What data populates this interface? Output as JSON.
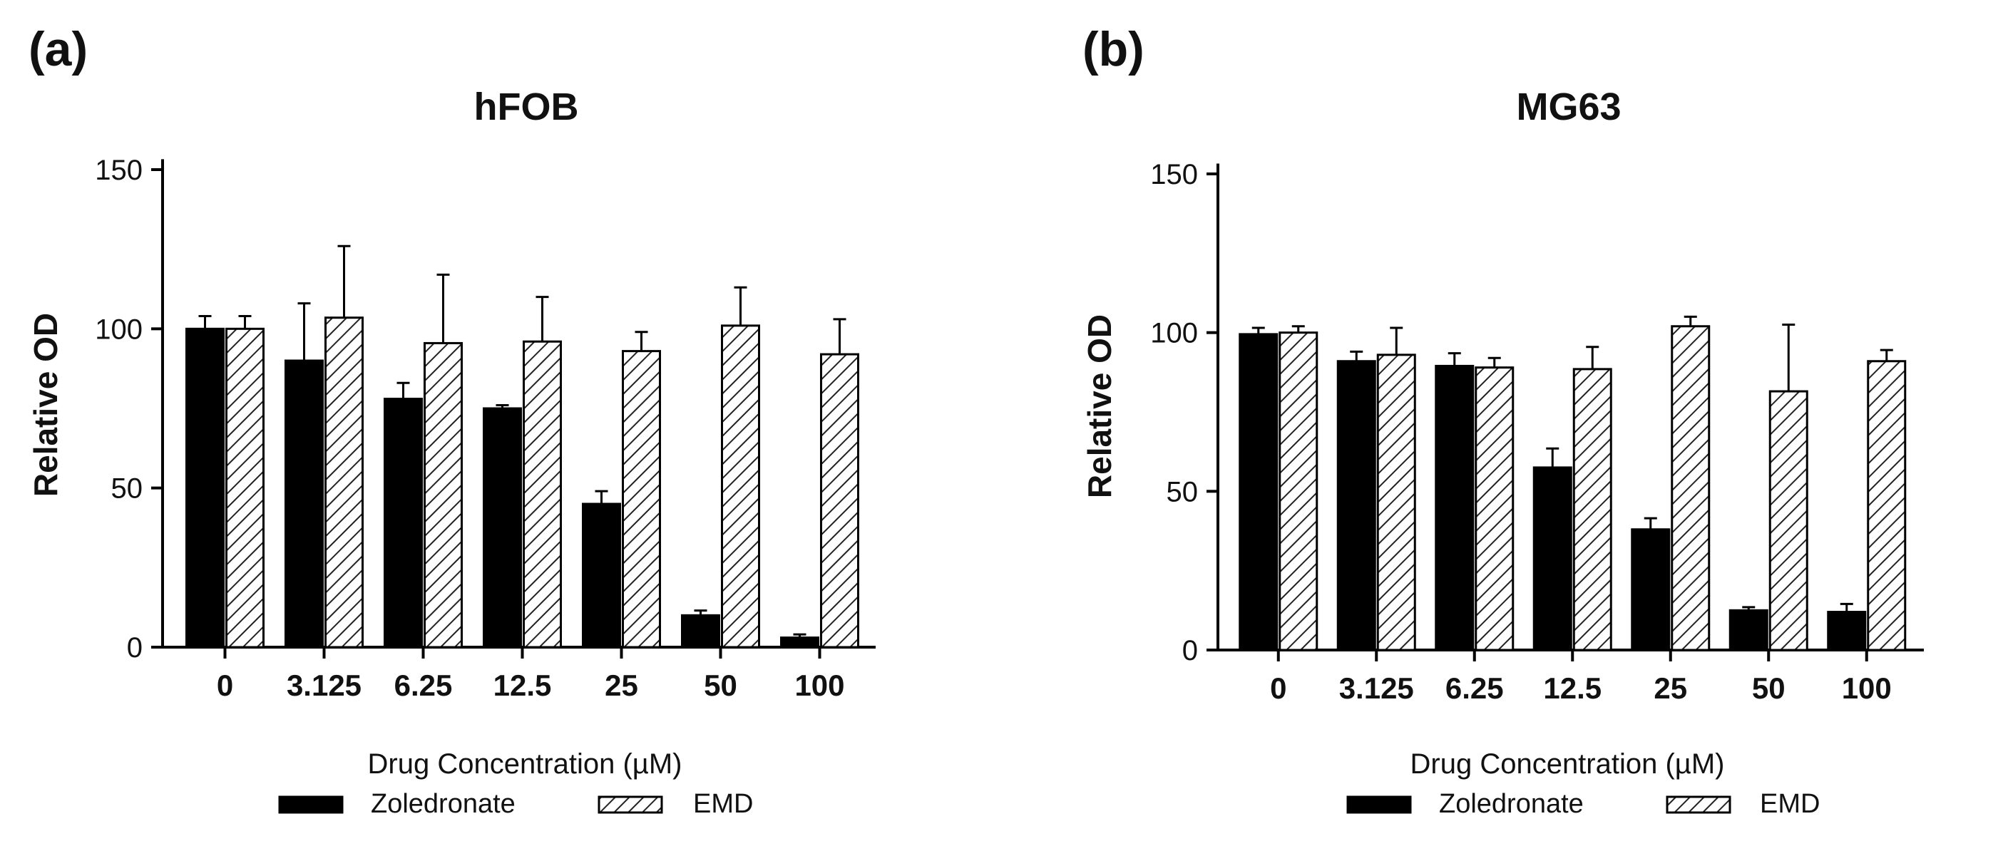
{
  "chart_data": [
    {
      "type": "bar",
      "panel_label": "(a)",
      "title": "hFOB",
      "xlabel": "Drug Concentration (µM)",
      "ylabel": "Relative  OD",
      "ylim": [
        0,
        160
      ],
      "yticks": [
        0,
        50,
        100,
        150
      ],
      "ytick_labels": [
        "0",
        "50",
        "100",
        "150"
      ],
      "categories": [
        "0",
        "3.125",
        "6.25",
        "12.5",
        "25",
        "50",
        "100"
      ],
      "legend_position": "bottom",
      "series": [
        {
          "name": "Zoledronate",
          "fill": "solid",
          "color": "#000000",
          "values": [
            100,
            90,
            78,
            75,
            45,
            10,
            3
          ],
          "errors": [
            4,
            18,
            5,
            1,
            4,
            1.5,
            1
          ]
        },
        {
          "name": "EMD",
          "fill": "hatched",
          "color": "#ffffff",
          "values": [
            100,
            103.5,
            95.5,
            96,
            93,
            101,
            92
          ],
          "errors": [
            4,
            22.5,
            21.5,
            14,
            6,
            12,
            11
          ]
        }
      ]
    },
    {
      "type": "bar",
      "panel_label": "(b)",
      "title": "MG63",
      "xlabel": "Drug Concentration (µM)",
      "ylabel": "Relative  OD",
      "ylim": [
        0,
        160
      ],
      "yticks": [
        0,
        50,
        100,
        150
      ],
      "ytick_labels": [
        "0",
        "50",
        "100",
        "150"
      ],
      "categories": [
        "0",
        "3.125",
        "6.25",
        "12.5",
        "25",
        "50",
        "100"
      ],
      "legend_position": "bottom",
      "series": [
        {
          "name": "Zoledronate",
          "fill": "solid",
          "color": "#000000",
          "values": [
            99.5,
            91,
            89.5,
            57.5,
            38,
            12.5,
            12
          ],
          "errors": [
            2,
            3,
            4,
            6,
            3.5,
            1,
            2.5
          ]
        },
        {
          "name": "EMD",
          "fill": "hatched",
          "color": "#ffffff",
          "values": [
            100,
            93,
            89,
            88.5,
            102,
            81.5,
            91
          ],
          "errors": [
            2,
            8.5,
            3,
            7,
            3,
            21,
            3.5
          ]
        }
      ]
    }
  ]
}
